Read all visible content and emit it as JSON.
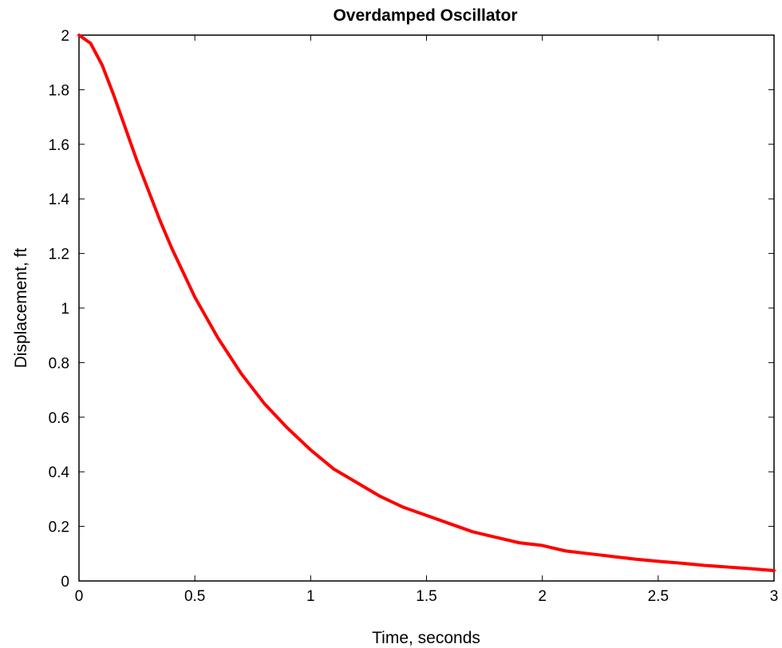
{
  "chart_data": {
    "type": "line",
    "title": "Overdamped Oscillator",
    "xlabel": "Time, seconds",
    "ylabel": "Displacement, ft",
    "xlim": [
      0,
      3
    ],
    "ylim": [
      0,
      2
    ],
    "xticks": [
      0,
      0.5,
      1,
      1.5,
      2,
      2.5,
      3
    ],
    "yticks": [
      0,
      0.2,
      0.4,
      0.6,
      0.8,
      1,
      1.2,
      1.4,
      1.6,
      1.8,
      2
    ],
    "xtick_labels": [
      "0",
      "0.5",
      "1",
      "1.5",
      "2",
      "2.5",
      "3"
    ],
    "ytick_labels": [
      "0",
      "0.2",
      "0.4",
      "0.6",
      "0.8",
      "1",
      "1.2",
      "1.4",
      "1.6",
      "1.8",
      "2"
    ],
    "grid": false,
    "series": [
      {
        "color": "#ff0000",
        "x": [
          0,
          0.05,
          0.1,
          0.15,
          0.2,
          0.25,
          0.3,
          0.35,
          0.4,
          0.45,
          0.5,
          0.6,
          0.7,
          0.8,
          0.9,
          1.0,
          1.1,
          1.2,
          1.3,
          1.4,
          1.5,
          1.6,
          1.7,
          1.8,
          1.9,
          2.0,
          2.1,
          2.2,
          2.3,
          2.4,
          2.5,
          2.6,
          2.7,
          2.8,
          2.9,
          3.0
        ],
        "y": [
          2.0,
          1.97,
          1.89,
          1.78,
          1.66,
          1.54,
          1.43,
          1.32,
          1.22,
          1.13,
          1.04,
          0.89,
          0.76,
          0.65,
          0.56,
          0.48,
          0.41,
          0.36,
          0.31,
          0.27,
          0.24,
          0.21,
          0.18,
          0.16,
          0.14,
          0.13,
          0.11,
          0.1,
          0.09,
          0.08,
          0.072,
          0.065,
          0.057,
          0.051,
          0.045,
          0.038
        ]
      }
    ]
  }
}
